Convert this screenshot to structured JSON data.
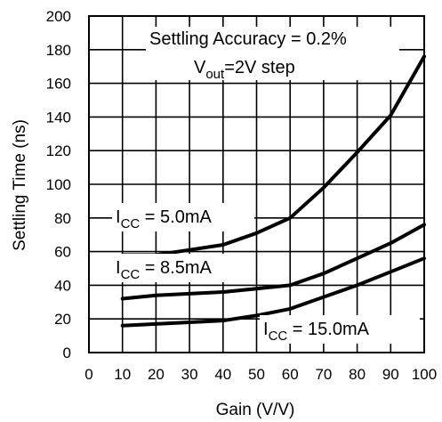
{
  "chart_data": {
    "type": "line",
    "title": "",
    "xlabel": "Gain (V/V)",
    "ylabel": "Settling Time (ns)",
    "xlim": [
      0,
      100
    ],
    "ylim": [
      0,
      200
    ],
    "x_ticks": [
      0,
      10,
      20,
      30,
      40,
      50,
      60,
      70,
      80,
      90,
      100
    ],
    "y_ticks": [
      0,
      20,
      40,
      60,
      80,
      100,
      120,
      140,
      160,
      180,
      200
    ],
    "grid": true,
    "series": [
      {
        "name": "I_CC = 5.0mA",
        "label_main": "I",
        "label_sub": "CC",
        "label_rest": " = 5.0mA",
        "x": [
          10,
          20,
          30,
          40,
          50,
          60,
          70,
          80,
          90,
          100
        ],
        "y": [
          58,
          58,
          61,
          64,
          71,
          80,
          98,
          119,
          141,
          176
        ]
      },
      {
        "name": "I_CC = 8.5mA",
        "label_main": "I",
        "label_sub": "CC",
        "label_rest": " = 8.5mA",
        "x": [
          10,
          20,
          30,
          40,
          50,
          60,
          70,
          80,
          90,
          100
        ],
        "y": [
          32,
          34,
          35,
          36,
          38,
          40,
          47,
          56,
          65,
          76
        ]
      },
      {
        "name": "I_CC = 15.0mA",
        "label_main": "I",
        "label_sub": "CC",
        "label_rest": " = 15.0mA",
        "x": [
          10,
          20,
          30,
          40,
          50,
          60,
          70,
          80,
          90,
          100
        ],
        "y": [
          16,
          17,
          18,
          19,
          22,
          26,
          33,
          40,
          48,
          56
        ]
      }
    ],
    "annotation": {
      "line1": "Settling Accuracy = 0.2%",
      "line2_main": "V",
      "line2_sub": "out",
      "line2_rest": "=2V step"
    }
  }
}
